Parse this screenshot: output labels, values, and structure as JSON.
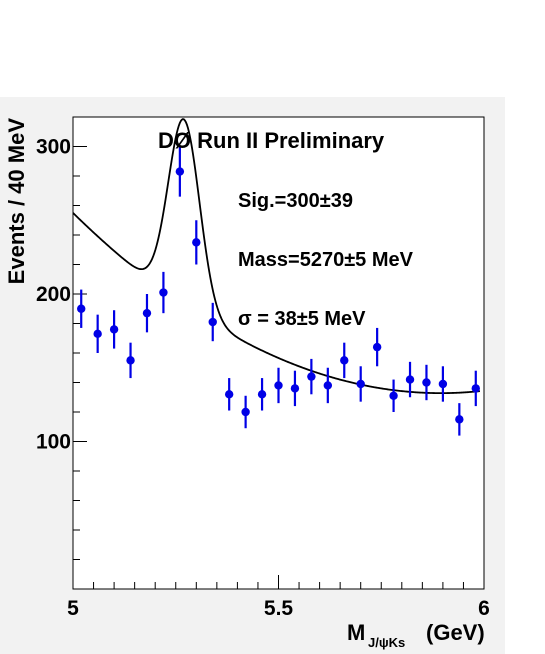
{
  "chart_data": {
    "type": "scatter",
    "title": "DØ Run II Preliminary",
    "ylabel": "Events / 40  MeV",
    "xlabel_main": "M",
    "xlabel_sub": "J/ψKs",
    "xlabel_unit": "(GeV)",
    "xlim": [
      5.0,
      6.0
    ],
    "ylim": [
      0,
      320
    ],
    "x_ticks": [
      {
        "value": 5.0,
        "label": "5"
      },
      {
        "value": 5.5,
        "label": "5.5"
      },
      {
        "value": 6.0,
        "label": "6"
      }
    ],
    "y_ticks": [
      {
        "value": 100,
        "label": "100"
      },
      {
        "value": 200,
        "label": "200"
      },
      {
        "value": 300,
        "label": "300"
      }
    ],
    "annotations": [
      {
        "id": "sig",
        "text": "Sig.=300±39"
      },
      {
        "id": "mass",
        "text": "Mass=5270±5 MeV"
      },
      {
        "id": "sigma",
        "text": "σ = 38±5 MeV"
      }
    ],
    "series": [
      {
        "type": "points_with_errors",
        "color": "#0000e6",
        "points": [
          {
            "x": 5.02,
            "y": 190,
            "err": 13
          },
          {
            "x": 5.06,
            "y": 173,
            "err": 13
          },
          {
            "x": 5.1,
            "y": 176,
            "err": 13
          },
          {
            "x": 5.14,
            "y": 155,
            "err": 12
          },
          {
            "x": 5.18,
            "y": 187,
            "err": 13
          },
          {
            "x": 5.22,
            "y": 201,
            "err": 14
          },
          {
            "x": 5.26,
            "y": 283,
            "err": 17
          },
          {
            "x": 5.3,
            "y": 235,
            "err": 15
          },
          {
            "x": 5.34,
            "y": 181,
            "err": 13
          },
          {
            "x": 5.38,
            "y": 132,
            "err": 11
          },
          {
            "x": 5.42,
            "y": 120,
            "err": 11
          },
          {
            "x": 5.46,
            "y": 132,
            "err": 11
          },
          {
            "x": 5.5,
            "y": 138,
            "err": 12
          },
          {
            "x": 5.54,
            "y": 136,
            "err": 12
          },
          {
            "x": 5.58,
            "y": 144,
            "err": 12
          },
          {
            "x": 5.62,
            "y": 138,
            "err": 12
          },
          {
            "x": 5.66,
            "y": 155,
            "err": 12
          },
          {
            "x": 5.7,
            "y": 139,
            "err": 12
          },
          {
            "x": 5.74,
            "y": 164,
            "err": 13
          },
          {
            "x": 5.78,
            "y": 131,
            "err": 11
          },
          {
            "x": 5.82,
            "y": 142,
            "err": 12
          },
          {
            "x": 5.86,
            "y": 140,
            "err": 12
          },
          {
            "x": 5.9,
            "y": 139,
            "err": 12
          },
          {
            "x": 5.94,
            "y": 115,
            "err": 11
          },
          {
            "x": 5.98,
            "y": 136,
            "err": 12
          }
        ]
      },
      {
        "type": "fit_curve",
        "color": "#000000",
        "mean": 5.27,
        "sigma": 0.038,
        "signal_events": 300,
        "bin_width": 0.04,
        "background_quadratic": [
          136,
          -44.26,
          15.25
        ]
      }
    ]
  }
}
